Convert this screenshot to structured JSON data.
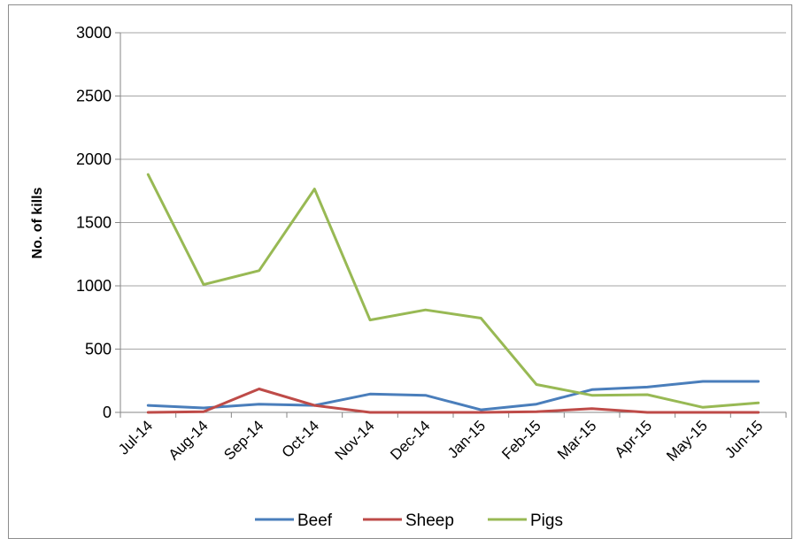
{
  "chart_data": {
    "type": "line",
    "title": "",
    "xlabel": "",
    "ylabel": "No. of kills",
    "ylim": [
      0,
      3000
    ],
    "yticks": [
      0,
      500,
      1000,
      1500,
      2000,
      2500,
      3000
    ],
    "grid": "horizontal",
    "legend": "bottom",
    "categories": [
      "Jul-14",
      "Aug-14",
      "Sep-14",
      "Oct-14",
      "Nov-14",
      "Dec-14",
      "Jan-15",
      "Feb-15",
      "Mar-15",
      "Apr-15",
      "May-15",
      "Jun-15"
    ],
    "series": [
      {
        "name": "Beef",
        "color": "#4a7ebb",
        "values": [
          55,
          35,
          65,
          55,
          145,
          135,
          20,
          65,
          180,
          200,
          245,
          245
        ]
      },
      {
        "name": "Sheep",
        "color": "#be4b48",
        "values": [
          0,
          5,
          185,
          55,
          0,
          0,
          0,
          5,
          30,
          0,
          0,
          0
        ]
      },
      {
        "name": "Pigs",
        "color": "#98b954",
        "values": [
          1880,
          1010,
          1120,
          1765,
          730,
          810,
          745,
          220,
          135,
          140,
          40,
          75
        ]
      }
    ]
  }
}
